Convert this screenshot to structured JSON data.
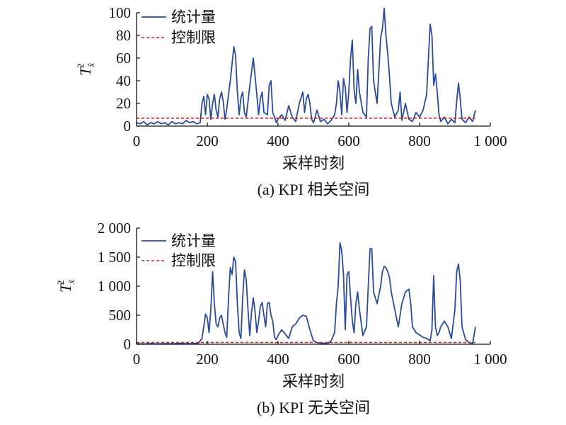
{
  "chart_data": [
    {
      "type": "line",
      "caption": "(a) KPI 相关空间",
      "xlabel": "采样时刻",
      "ylabel": {
        "main": "T",
        "sup": "2",
        "sub": "x̂"
      },
      "xlim": [
        0,
        1000
      ],
      "ylim": [
        0,
        100
      ],
      "xticks": [
        "0",
        "200",
        "400",
        "600",
        "800",
        "1 000"
      ],
      "yticks": [
        "0",
        "20",
        "40",
        "60",
        "80",
        "100"
      ],
      "xtick_values": [
        0,
        200,
        400,
        600,
        800,
        1000
      ],
      "ytick_values": [
        0,
        20,
        40,
        60,
        80,
        100
      ],
      "grid": false,
      "legend_position": "top-left",
      "series": [
        {
          "name": "统计量",
          "style": "solid",
          "color": "#2b4a9b",
          "x": [
            0,
            10,
            20,
            30,
            40,
            50,
            60,
            70,
            80,
            90,
            100,
            110,
            120,
            130,
            140,
            150,
            160,
            170,
            180,
            185,
            190,
            195,
            200,
            205,
            210,
            215,
            220,
            225,
            230,
            235,
            240,
            245,
            250,
            255,
            260,
            265,
            270,
            275,
            280,
            285,
            290,
            295,
            300,
            305,
            310,
            320,
            330,
            340,
            345,
            350,
            355,
            360,
            370,
            375,
            380,
            385,
            390,
            395,
            400,
            410,
            420,
            430,
            440,
            450,
            460,
            470,
            475,
            480,
            485,
            490,
            495,
            500,
            505,
            510,
            520,
            530,
            540,
            550,
            560,
            565,
            570,
            575,
            580,
            585,
            590,
            595,
            600,
            605,
            610,
            615,
            620,
            625,
            630,
            640,
            650,
            655,
            660,
            665,
            670,
            680,
            690,
            695,
            700,
            705,
            710,
            715,
            720,
            730,
            740,
            745,
            750,
            760,
            770,
            780,
            790,
            800,
            810,
            820,
            830,
            835,
            840,
            845,
            850,
            855,
            860,
            870,
            880,
            890,
            900,
            905,
            910,
            915,
            920,
            930,
            940,
            950,
            958
          ],
          "y": [
            3,
            2,
            4,
            1,
            3,
            2,
            4,
            2,
            3,
            1,
            4,
            2,
            3,
            2,
            5,
            3,
            4,
            2,
            3,
            20,
            26,
            10,
            28,
            24,
            6,
            20,
            28,
            14,
            8,
            24,
            30,
            22,
            6,
            15,
            28,
            40,
            55,
            70,
            62,
            30,
            10,
            25,
            30,
            12,
            8,
            35,
            60,
            28,
            10,
            24,
            30,
            12,
            10,
            36,
            40,
            12,
            8,
            3,
            6,
            10,
            5,
            18,
            8,
            4,
            20,
            30,
            12,
            24,
            28,
            20,
            6,
            3,
            8,
            14,
            4,
            6,
            2,
            5,
            10,
            20,
            40,
            30,
            10,
            42,
            34,
            12,
            30,
            60,
            76,
            32,
            20,
            50,
            30,
            12,
            8,
            60,
            86,
            88,
            40,
            20,
            78,
            86,
            104,
            80,
            64,
            44,
            20,
            8,
            14,
            30,
            5,
            20,
            6,
            4,
            12,
            8,
            14,
            28,
            90,
            80,
            36,
            46,
            30,
            10,
            4,
            8,
            2,
            6,
            3,
            22,
            38,
            24,
            6,
            3,
            8,
            4,
            14
          ]
        },
        {
          "name": "控制限",
          "style": "dashed",
          "color": "#d21f26",
          "x": [
            0,
            958
          ],
          "y": [
            7,
            7
          ]
        }
      ]
    },
    {
      "type": "line",
      "caption": "(b) KPI 无关空间",
      "xlabel": "采样时刻",
      "ylabel": {
        "main": "T",
        "sup": "2",
        "sub": "x̃"
      },
      "xlim": [
        0,
        1000
      ],
      "ylim": [
        0,
        2000
      ],
      "xticks": [
        "0",
        "200",
        "400",
        "600",
        "800",
        "1 000"
      ],
      "yticks": [
        "0",
        "500",
        "1 000",
        "1 500",
        "2 000"
      ],
      "xtick_values": [
        0,
        200,
        400,
        600,
        800,
        1000
      ],
      "ytick_values": [
        0,
        500,
        1000,
        1500,
        2000
      ],
      "grid": false,
      "legend_position": "top-left",
      "series": [
        {
          "name": "统计量",
          "style": "solid",
          "color": "#2b4a9b",
          "x": [
            0,
            20,
            40,
            60,
            80,
            100,
            120,
            140,
            160,
            175,
            185,
            190,
            195,
            200,
            205,
            210,
            215,
            220,
            225,
            230,
            235,
            240,
            245,
            250,
            255,
            260,
            265,
            270,
            275,
            280,
            285,
            290,
            295,
            300,
            305,
            310,
            315,
            320,
            325,
            330,
            335,
            340,
            345,
            350,
            355,
            360,
            365,
            370,
            375,
            380,
            385,
            390,
            395,
            400,
            410,
            420,
            430,
            440,
            450,
            460,
            470,
            480,
            490,
            500,
            510,
            520,
            530,
            540,
            550,
            560,
            565,
            570,
            575,
            580,
            585,
            590,
            595,
            600,
            605,
            610,
            615,
            620,
            625,
            630,
            640,
            650,
            655,
            660,
            665,
            670,
            680,
            690,
            695,
            700,
            705,
            710,
            715,
            720,
            730,
            740,
            750,
            760,
            770,
            775,
            780,
            790,
            800,
            810,
            820,
            830,
            835,
            840,
            845,
            850,
            855,
            860,
            870,
            880,
            890,
            900,
            905,
            910,
            915,
            920,
            930,
            940,
            950,
            958
          ],
          "y": [
            10,
            5,
            12,
            6,
            10,
            8,
            14,
            10,
            12,
            20,
            100,
            300,
            520,
            450,
            200,
            600,
            1250,
            700,
            350,
            300,
            450,
            500,
            350,
            200,
            120,
            800,
            1320,
            1200,
            1500,
            1420,
            700,
            200,
            100,
            800,
            1280,
            1120,
            600,
            150,
            550,
            800,
            560,
            200,
            400,
            650,
            720,
            500,
            300,
            700,
            720,
            500,
            400,
            120,
            80,
            150,
            250,
            180,
            100,
            300,
            350,
            450,
            500,
            480,
            250,
            60,
            30,
            20,
            15,
            10,
            60,
            200,
            700,
            1000,
            1750,
            1600,
            1200,
            250,
            1200,
            1250,
            800,
            400,
            200,
            700,
            900,
            600,
            150,
            300,
            1000,
            1640,
            1650,
            900,
            700,
            1000,
            1250,
            1340,
            1320,
            1250,
            1150,
            900,
            600,
            300,
            700,
            900,
            950,
            700,
            300,
            200,
            160,
            120,
            100,
            60,
            250,
            1180,
            300,
            150,
            200,
            300,
            400,
            300,
            100,
            600,
            1250,
            1380,
            1100,
            300,
            80,
            30,
            10,
            300
          ]
        },
        {
          "name": "控制限",
          "style": "dashed",
          "color": "#d21f26",
          "x": [
            0,
            958
          ],
          "y": [
            30,
            30
          ]
        }
      ]
    }
  ]
}
